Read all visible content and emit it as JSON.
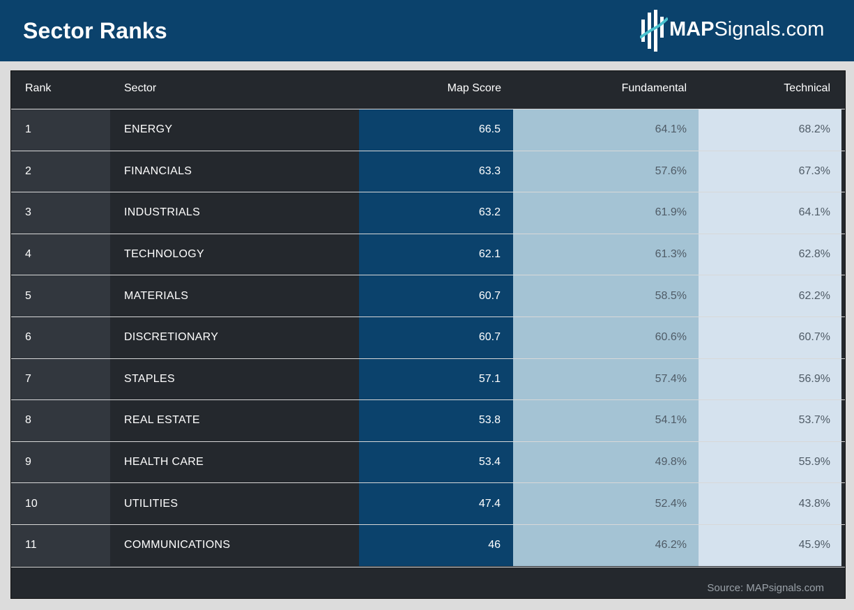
{
  "header": {
    "title": "Sector Ranks",
    "logo_strong": "MAP",
    "logo_rest": "Signals.com"
  },
  "colors": {
    "header_bg": "#0b426c",
    "map_score_bg": "#0b426c",
    "fundamental_bg": "#a4c3d4",
    "technical_bg": "#d5e2ee",
    "table_bg": "#24282d"
  },
  "chart_data": {
    "type": "table",
    "columns": [
      "Rank",
      "Sector",
      "Map Score",
      "Fundamental",
      "Technical"
    ],
    "rows": [
      [
        "1",
        "ENERGY",
        "66.5",
        "64.1%",
        "68.2%"
      ],
      [
        "2",
        "FINANCIALS",
        "63.3",
        "57.6%",
        "67.3%"
      ],
      [
        "3",
        "INDUSTRIALS",
        "63.2",
        "61.9%",
        "64.1%"
      ],
      [
        "4",
        "TECHNOLOGY",
        "62.1",
        "61.3%",
        "62.8%"
      ],
      [
        "5",
        "MATERIALS",
        "60.7",
        "58.5%",
        "62.2%"
      ],
      [
        "6",
        "DISCRETIONARY",
        "60.7",
        "60.6%",
        "60.7%"
      ],
      [
        "7",
        "STAPLES",
        "57.1",
        "57.4%",
        "56.9%"
      ],
      [
        "8",
        "REAL ESTATE",
        "53.8",
        "54.1%",
        "53.7%"
      ],
      [
        "9",
        "HEALTH CARE",
        "53.4",
        "49.8%",
        "55.9%"
      ],
      [
        "10",
        "UTILITIES",
        "47.4",
        "52.4%",
        "43.8%"
      ],
      [
        "11",
        "COMMUNICATIONS",
        "46",
        "46.2%",
        "45.9%"
      ]
    ],
    "source": "Source: MAPsignals.com"
  }
}
